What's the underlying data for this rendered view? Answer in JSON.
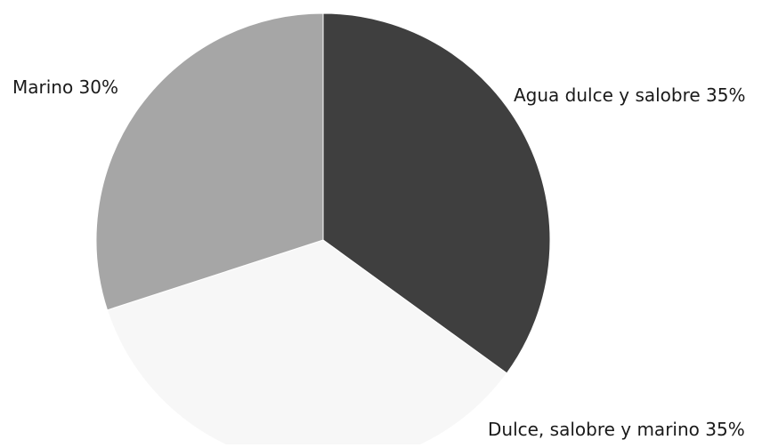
{
  "chart_data": {
    "type": "pie",
    "title": "",
    "slices": [
      {
        "label": "Agua dulce y salobre",
        "value": 35,
        "display": "Agua dulce y salobre 35%",
        "color": "#3f3f3f"
      },
      {
        "label": "Dulce, salobre y marino",
        "value": 35,
        "display": "Dulce, salobre y marino 35%",
        "color": "#f7f7f7"
      },
      {
        "label": "Marino",
        "value": 30,
        "display": "Marino 30%",
        "color": "#a6a6a6"
      }
    ],
    "start_angle_deg": 0,
    "direction": "clockwise",
    "legend": "none"
  }
}
